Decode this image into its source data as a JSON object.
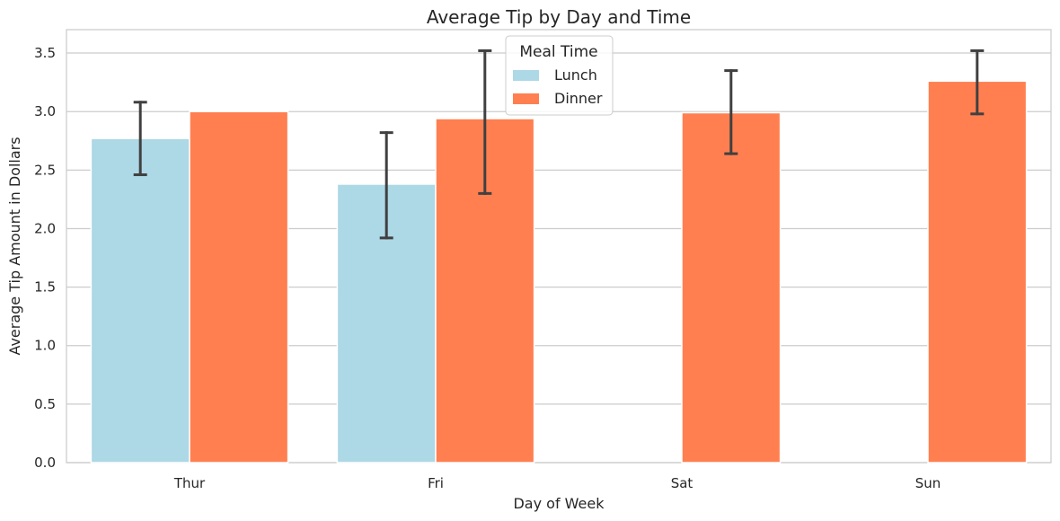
{
  "chart_data": {
    "type": "bar",
    "title": "Average Tip by Day and Time",
    "xlabel": "Day of Week",
    "ylabel": "Average Tip Amount in Dollars",
    "categories": [
      "Thur",
      "Fri",
      "Sat",
      "Sun"
    ],
    "ylim": [
      0,
      3.7
    ],
    "yticks": [
      "0.0",
      "0.5",
      "1.0",
      "1.5",
      "2.0",
      "2.5",
      "3.0",
      "3.5"
    ],
    "grid": true,
    "legend": {
      "title": "Meal Time",
      "placement": "top-center"
    },
    "series": [
      {
        "name": "Lunch",
        "color": "#add8e6",
        "values": [
          2.77,
          2.38,
          null,
          null
        ],
        "error_low": [
          2.46,
          1.92,
          null,
          null
        ],
        "error_high": [
          3.08,
          2.82,
          null,
          null
        ]
      },
      {
        "name": "Dinner",
        "color": "#ff7f50",
        "values": [
          3.0,
          2.94,
          2.99,
          3.26
        ],
        "error_low": [
          3.0,
          2.3,
          2.64,
          2.98
        ],
        "error_high": [
          3.0,
          3.52,
          3.35,
          3.52
        ]
      }
    ]
  }
}
